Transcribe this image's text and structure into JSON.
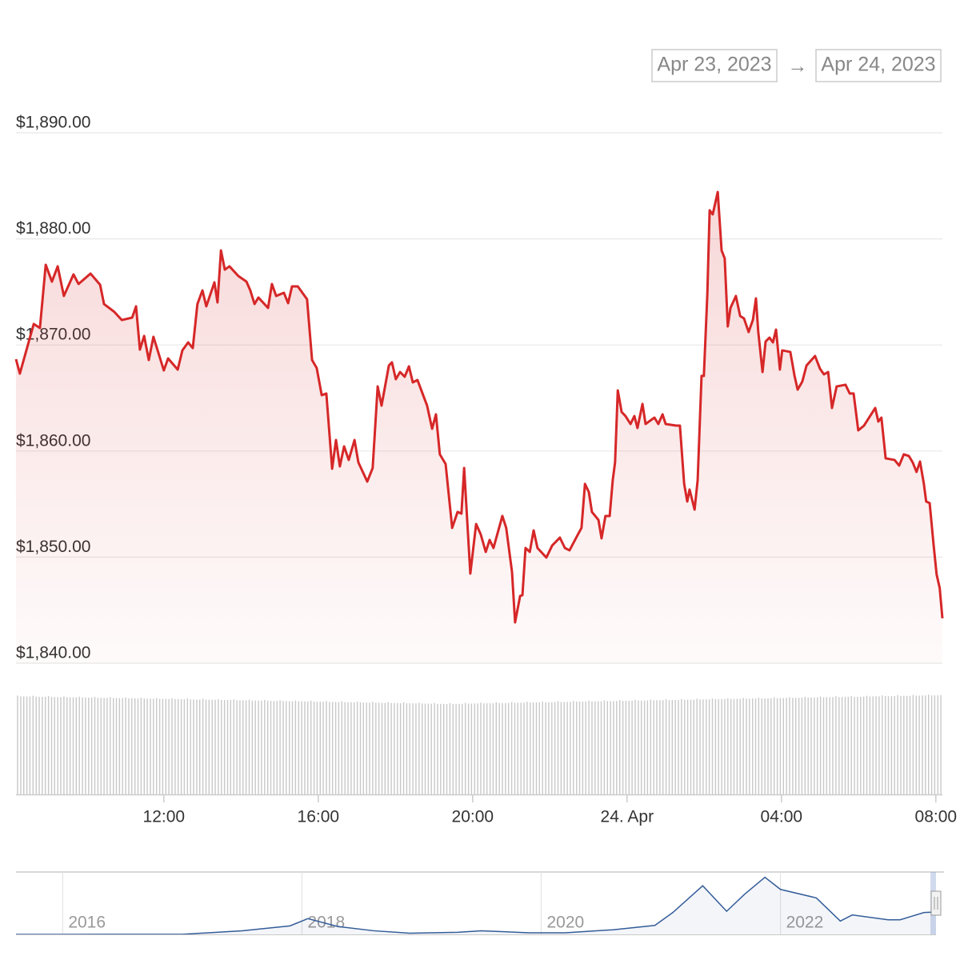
{
  "range_selector": {
    "from": "Apr 23, 2023",
    "separator": "→",
    "to": "Apr 24, 2023"
  },
  "chart_data": [
    {
      "type": "line",
      "color": "#d62728",
      "grid": true,
      "x": [
        8.17,
        8.27,
        8.63,
        8.79,
        8.94,
        9.1,
        9.25,
        9.41,
        9.66,
        9.79,
        10.1,
        10.35,
        10.45,
        10.72,
        10.91,
        11.18,
        11.28,
        11.38,
        11.49,
        11.61,
        11.73,
        12.0,
        12.11,
        12.36,
        12.48,
        12.63,
        12.75,
        12.87,
        13.0,
        13.1,
        13.31,
        13.39,
        13.48,
        13.58,
        13.7,
        13.93,
        14.14,
        14.24,
        14.35,
        14.45,
        14.7,
        14.8,
        14.91,
        15.11,
        15.22,
        15.32,
        15.47,
        15.71,
        15.84,
        15.96,
        16.09,
        16.21,
        16.36,
        16.46,
        16.56,
        16.67,
        16.79,
        16.94,
        17.04,
        17.27,
        17.41,
        17.54,
        17.64,
        17.83,
        17.91,
        18.01,
        18.12,
        18.24,
        18.35,
        18.45,
        18.57,
        18.82,
        18.95,
        19.05,
        19.15,
        19.3,
        19.47,
        19.61,
        19.71,
        19.78,
        19.94,
        20.09,
        20.21,
        20.34,
        20.44,
        20.54,
        20.77,
        20.87,
        21.02,
        21.1,
        21.23,
        21.29,
        21.37,
        21.48,
        21.58,
        21.68,
        21.91,
        22.06,
        22.26,
        22.39,
        22.51,
        22.74,
        22.82,
        22.91,
        23.01,
        23.09,
        23.26,
        23.34,
        23.44,
        23.55,
        23.63,
        23.69,
        23.76,
        23.86,
        23.96,
        24.09,
        24.19,
        24.27,
        24.4,
        24.48,
        24.71,
        24.81,
        24.92,
        25.0,
        25.27,
        25.37,
        25.48,
        25.56,
        25.62,
        25.75,
        25.83,
        25.93,
        25.99,
        26.08,
        26.14,
        26.22,
        26.35,
        26.45,
        26.53,
        26.61,
        26.68,
        26.82,
        26.93,
        27.03,
        27.15,
        27.26,
        27.34,
        27.4,
        27.51,
        27.59,
        27.69,
        27.78,
        27.86,
        27.96,
        28.02,
        28.23,
        28.34,
        28.42,
        28.54,
        28.65,
        28.87,
        29.0,
        29.1,
        29.21,
        29.31,
        29.43,
        29.66,
        29.77,
        29.87,
        29.99,
        30.14,
        30.43,
        30.51,
        30.59,
        30.7,
        30.93,
        31.05,
        31.17,
        31.3,
        31.4,
        31.5,
        31.59,
        31.69,
        31.75,
        31.84,
        31.94,
        32.02,
        32.1,
        32.17
      ],
      "values": [
        1868.66,
        1867.3,
        1871.98,
        1871.6,
        1877.56,
        1875.97,
        1877.41,
        1874.62,
        1876.65,
        1875.75,
        1876.73,
        1875.67,
        1873.86,
        1873.11,
        1872.35,
        1872.58,
        1873.64,
        1869.56,
        1870.85,
        1868.58,
        1870.77,
        1867.6,
        1868.73,
        1867.68,
        1869.49,
        1870.24,
        1869.71,
        1873.86,
        1875.14,
        1873.64,
        1875.9,
        1874.01,
        1878.91,
        1877.1,
        1877.41,
        1876.5,
        1875.97,
        1875.14,
        1873.86,
        1874.47,
        1873.49,
        1875.75,
        1874.62,
        1874.92,
        1873.94,
        1875.52,
        1875.52,
        1874.31,
        1868.58,
        1867.83,
        1865.27,
        1865.42,
        1858.33,
        1861.04,
        1858.55,
        1860.44,
        1859.16,
        1861.04,
        1858.93,
        1857.12,
        1858.4,
        1866.09,
        1864.28,
        1868.06,
        1868.36,
        1866.77,
        1867.45,
        1867.0,
        1867.98,
        1866.47,
        1866.7,
        1864.28,
        1862.1,
        1863.46,
        1859.69,
        1858.78,
        1852.75,
        1854.26,
        1854.1,
        1858.4,
        1848.45,
        1853.12,
        1852.14,
        1850.49,
        1851.62,
        1850.86,
        1853.88,
        1852.75,
        1848.6,
        1843.85,
        1846.34,
        1846.41,
        1850.86,
        1850.49,
        1852.52,
        1850.86,
        1849.96,
        1851.09,
        1851.84,
        1850.86,
        1850.64,
        1852.22,
        1852.75,
        1856.9,
        1856.14,
        1854.26,
        1853.5,
        1851.77,
        1853.88,
        1853.88,
        1857.27,
        1858.93,
        1865.72,
        1863.68,
        1863.3,
        1862.55,
        1863.3,
        1862.17,
        1864.44,
        1862.55,
        1863.15,
        1862.55,
        1863.46,
        1862.55,
        1862.4,
        1862.4,
        1856.9,
        1855.24,
        1856.37,
        1854.48,
        1857.27,
        1867.08,
        1867.08,
        1874.77,
        1882.69,
        1882.31,
        1884.42,
        1878.91,
        1878.16,
        1871.75,
        1873.49,
        1874.62,
        1872.73,
        1872.5,
        1871.22,
        1872.35,
        1874.39,
        1871.22,
        1867.45,
        1870.32,
        1870.69,
        1870.24,
        1871.45,
        1867.68,
        1869.49,
        1869.34,
        1867.08,
        1865.79,
        1866.55,
        1868.06,
        1868.96,
        1867.75,
        1867.23,
        1867.45,
        1864.06,
        1866.09,
        1866.25,
        1865.42,
        1865.42,
        1861.95,
        1862.4,
        1864.06,
        1862.78,
        1863.15,
        1859.31,
        1859.16,
        1858.63,
        1859.69,
        1859.54,
        1858.93,
        1858.03,
        1859.01,
        1856.9,
        1855.24,
        1855.09,
        1851.24,
        1848.37,
        1847.09,
        1844.23
      ],
      "xlim": [
        8.17,
        32.17
      ],
      "xticks": [
        {
          "value": 12,
          "label": "12:00"
        },
        {
          "value": 16,
          "label": "16:00"
        },
        {
          "value": 20,
          "label": "20:00"
        },
        {
          "value": 24,
          "label": "24. Apr"
        },
        {
          "value": 28,
          "label": "04:00"
        },
        {
          "value": 32,
          "label": "08:00"
        }
      ],
      "ylim": [
        1840,
        1890
      ],
      "yticks": [
        {
          "value": 1840,
          "label": "$1,840.00"
        },
        {
          "value": 1850,
          "label": "$1,850.00"
        },
        {
          "value": 1860,
          "label": "$1,860.00"
        },
        {
          "value": 1870,
          "label": "$1,870.00"
        },
        {
          "value": 1880,
          "label": "$1,880.00"
        },
        {
          "value": 1890,
          "label": "$1,890.00"
        }
      ]
    },
    {
      "type": "area",
      "color": "#335c99",
      "x": [
        2015.61,
        2016.0,
        2016.5,
        2017.0,
        2017.5,
        2017.9,
        2018.05,
        2018.3,
        2018.6,
        2018.9,
        2019.3,
        2019.5,
        2019.9,
        2020.2,
        2020.6,
        2020.95,
        2021.1,
        2021.35,
        2021.55,
        2021.7,
        2021.87,
        2022.0,
        2022.3,
        2022.5,
        2022.6,
        2022.9,
        2023.0,
        2023.2,
        2023.3
      ],
      "values": [
        1,
        1,
        12,
        8,
        300,
        700,
        1300,
        650,
        300,
        100,
        170,
        300,
        130,
        130,
        380,
        740,
        1800,
        4000,
        1900,
        3300,
        4700,
        3700,
        3000,
        1100,
        1600,
        1200,
        1200,
        1800,
        1845
      ],
      "xlim": [
        2015.61,
        2023.3
      ],
      "xticks": [
        2016,
        2018,
        2020,
        2022
      ],
      "ylim": [
        0,
        5000
      ]
    }
  ]
}
